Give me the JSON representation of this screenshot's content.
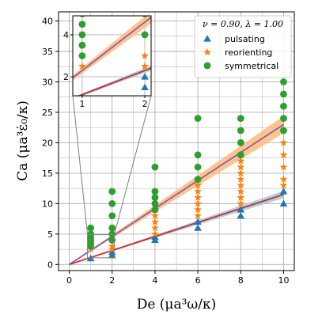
{
  "chart_data": {
    "type": "scatter",
    "xlabel": "De (μa³ω/κ)",
    "ylabel": "Ca (μa³ε̇₀/κ)",
    "xlim": [
      -0.5,
      10.5
    ],
    "ylim": [
      -1,
      41.5
    ],
    "xticks": [
      0,
      2,
      4,
      6,
      8,
      10
    ],
    "yticks": [
      0,
      5,
      10,
      15,
      20,
      25,
      30,
      35,
      40
    ],
    "grid": true,
    "legend": {
      "title": "ν = 0.90, λ = 1.00",
      "placement": "top-right",
      "entries": [
        {
          "name": "pulsating",
          "color": "#1f77b4",
          "marker": "triangle"
        },
        {
          "name": "reorienting",
          "color": "#ff7f0e",
          "marker": "star"
        },
        {
          "name": "symmetrical",
          "color": "#2ca02c",
          "marker": "circle"
        }
      ]
    },
    "lines": [
      {
        "name": "upper boundary",
        "x": [
          0,
          10
        ],
        "y": [
          0,
          23
        ],
        "color": "#8c5bb6",
        "band_color": "#ffbb78",
        "band_halfwidth": [
          0,
          1.4
        ]
      },
      {
        "name": "lower boundary",
        "x": [
          0,
          10
        ],
        "y": [
          0,
          11.5
        ],
        "color": "#d62728",
        "band_color": "#9ecae1",
        "band_halfwidth": [
          0,
          0.6
        ]
      }
    ],
    "series": [
      {
        "name": "pulsating",
        "color": "#1f77b4",
        "marker": "triangle",
        "points": [
          [
            1,
            1
          ],
          [
            2,
            1.5
          ],
          [
            2,
            2
          ],
          [
            4,
            4
          ],
          [
            4,
            4.5
          ],
          [
            6,
            6
          ],
          [
            6,
            7
          ],
          [
            8,
            8
          ],
          [
            8,
            9
          ],
          [
            10,
            10
          ],
          [
            10,
            12
          ]
        ]
      },
      {
        "name": "reorienting",
        "color": "#ff7f0e",
        "marker": "star",
        "points": [
          [
            1,
            2.5
          ],
          [
            2,
            2.5
          ],
          [
            2,
            3
          ],
          [
            4,
            5
          ],
          [
            4,
            6
          ],
          [
            4,
            7
          ],
          [
            4,
            8
          ],
          [
            4,
            9
          ],
          [
            6,
            8
          ],
          [
            6,
            9
          ],
          [
            6,
            10
          ],
          [
            6,
            11
          ],
          [
            6,
            12
          ],
          [
            6,
            13
          ],
          [
            8,
            10
          ],
          [
            8,
            11
          ],
          [
            8,
            12
          ],
          [
            8,
            13
          ],
          [
            8,
            14
          ],
          [
            8,
            15
          ],
          [
            8,
            16
          ],
          [
            8,
            17
          ],
          [
            8,
            18
          ],
          [
            10,
            13
          ],
          [
            10,
            14
          ],
          [
            10,
            16
          ],
          [
            10,
            18
          ],
          [
            10,
            20
          ],
          [
            10,
            22
          ]
        ]
      },
      {
        "name": "symmetrical",
        "color": "#2ca02c",
        "marker": "circle",
        "points": [
          [
            1,
            3
          ],
          [
            1,
            3.5
          ],
          [
            1,
            4
          ],
          [
            1,
            4.5
          ],
          [
            1,
            5
          ],
          [
            1,
            6
          ],
          [
            2,
            4
          ],
          [
            2,
            5
          ],
          [
            2,
            6
          ],
          [
            2,
            8
          ],
          [
            2,
            10
          ],
          [
            2,
            12
          ],
          [
            4,
            9
          ],
          [
            4,
            10
          ],
          [
            4,
            11
          ],
          [
            4,
            12
          ],
          [
            4,
            16
          ],
          [
            6,
            14
          ],
          [
            6,
            16
          ],
          [
            6,
            18
          ],
          [
            6,
            24
          ],
          [
            8,
            18
          ],
          [
            8,
            20
          ],
          [
            8,
            22
          ],
          [
            8,
            24
          ],
          [
            10,
            22
          ],
          [
            10,
            24
          ],
          [
            10,
            26
          ],
          [
            10,
            28
          ],
          [
            10,
            30
          ]
        ]
      }
    ],
    "inset": {
      "xlim": [
        0.85,
        2.1
      ],
      "ylim": [
        1.1,
        4.9
      ],
      "xticks": [
        1,
        2
      ],
      "yticks": [
        2,
        4
      ]
    }
  }
}
